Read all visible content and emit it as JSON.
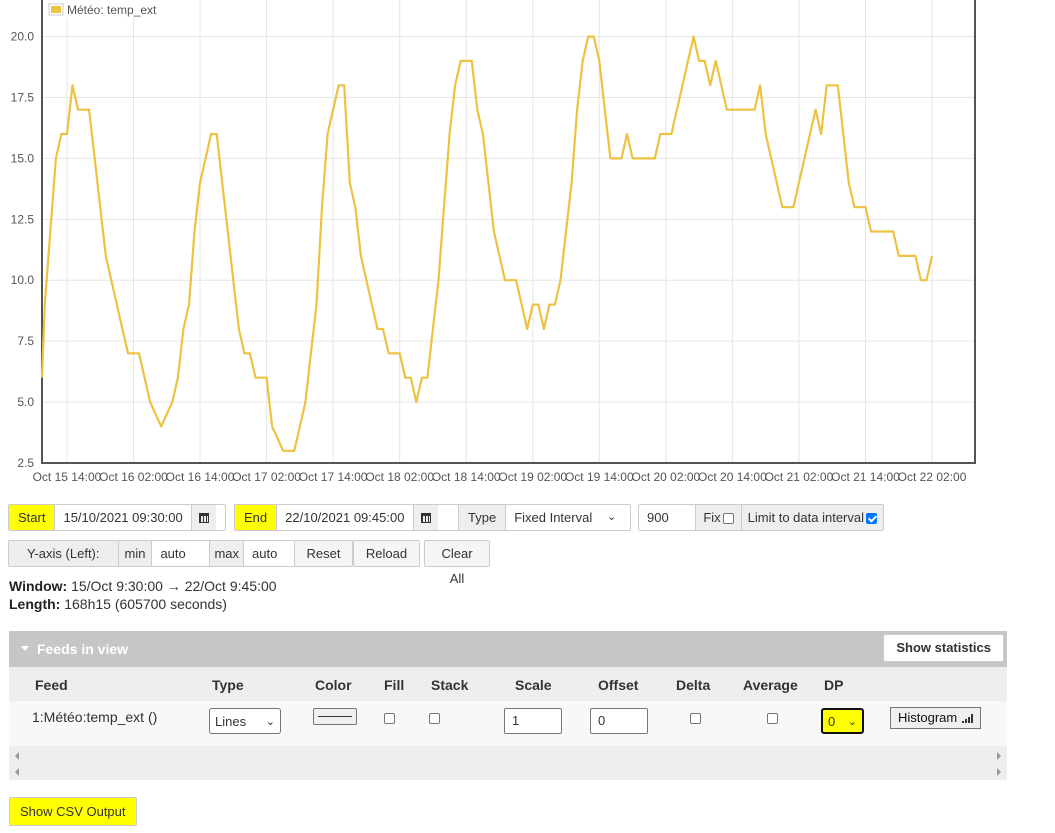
{
  "chart_data": {
    "type": "line",
    "series": [
      {
        "name": "Météo: temp_ext",
        "color": "#edc240",
        "points": [
          [
            "2021-10-15 09:30",
            6
          ],
          [
            "2021-10-15 10:00",
            9
          ],
          [
            "2021-10-15 11:00",
            12
          ],
          [
            "2021-10-15 12:00",
            15
          ],
          [
            "2021-10-15 13:00",
            16
          ],
          [
            "2021-10-15 14:00",
            16
          ],
          [
            "2021-10-15 15:00",
            18
          ],
          [
            "2021-10-15 16:00",
            17
          ],
          [
            "2021-10-15 18:00",
            17
          ],
          [
            "2021-10-15 19:00",
            15
          ],
          [
            "2021-10-15 20:00",
            13
          ],
          [
            "2021-10-15 21:00",
            11
          ],
          [
            "2021-10-15 22:00",
            10
          ],
          [
            "2021-10-15 23:00",
            9
          ],
          [
            "2021-10-16 00:00",
            8
          ],
          [
            "2021-10-16 01:00",
            7
          ],
          [
            "2021-10-16 03:00",
            7
          ],
          [
            "2021-10-16 04:00",
            6
          ],
          [
            "2021-10-16 05:00",
            5
          ],
          [
            "2021-10-16 07:00",
            4
          ],
          [
            "2021-10-16 09:00",
            5
          ],
          [
            "2021-10-16 10:00",
            6
          ],
          [
            "2021-10-16 11:00",
            8
          ],
          [
            "2021-10-16 12:00",
            9
          ],
          [
            "2021-10-16 13:00",
            12
          ],
          [
            "2021-10-16 14:00",
            14
          ],
          [
            "2021-10-16 15:00",
            15
          ],
          [
            "2021-10-16 16:00",
            16
          ],
          [
            "2021-10-16 17:00",
            16
          ],
          [
            "2021-10-16 18:00",
            14
          ],
          [
            "2021-10-16 19:00",
            12
          ],
          [
            "2021-10-16 20:00",
            10
          ],
          [
            "2021-10-16 21:00",
            8
          ],
          [
            "2021-10-16 22:00",
            7
          ],
          [
            "2021-10-16 23:00",
            7
          ],
          [
            "2021-10-17 00:00",
            6
          ],
          [
            "2021-10-17 02:00",
            6
          ],
          [
            "2021-10-17 03:00",
            4
          ],
          [
            "2021-10-17 05:00",
            3
          ],
          [
            "2021-10-17 07:00",
            3
          ],
          [
            "2021-10-17 08:00",
            4
          ],
          [
            "2021-10-17 09:00",
            5
          ],
          [
            "2021-10-17 10:00",
            7
          ],
          [
            "2021-10-17 11:00",
            9
          ],
          [
            "2021-10-17 12:00",
            13
          ],
          [
            "2021-10-17 13:00",
            16
          ],
          [
            "2021-10-17 14:00",
            17
          ],
          [
            "2021-10-17 15:00",
            18
          ],
          [
            "2021-10-17 16:00",
            18
          ],
          [
            "2021-10-17 17:00",
            14
          ],
          [
            "2021-10-17 18:00",
            13
          ],
          [
            "2021-10-17 19:00",
            11
          ],
          [
            "2021-10-17 20:00",
            10
          ],
          [
            "2021-10-17 21:00",
            9
          ],
          [
            "2021-10-17 22:00",
            8
          ],
          [
            "2021-10-17 23:00",
            8
          ],
          [
            "2021-10-18 00:00",
            7
          ],
          [
            "2021-10-18 02:00",
            7
          ],
          [
            "2021-10-18 03:00",
            6
          ],
          [
            "2021-10-18 04:00",
            6
          ],
          [
            "2021-10-18 05:00",
            5
          ],
          [
            "2021-10-18 06:00",
            6
          ],
          [
            "2021-10-18 07:00",
            6
          ],
          [
            "2021-10-18 08:00",
            8
          ],
          [
            "2021-10-18 09:00",
            10
          ],
          [
            "2021-10-18 10:00",
            13
          ],
          [
            "2021-10-18 11:00",
            16
          ],
          [
            "2021-10-18 12:00",
            18
          ],
          [
            "2021-10-18 13:00",
            19
          ],
          [
            "2021-10-18 15:00",
            19
          ],
          [
            "2021-10-18 16:00",
            17
          ],
          [
            "2021-10-18 17:00",
            16
          ],
          [
            "2021-10-18 18:00",
            14
          ],
          [
            "2021-10-18 19:00",
            12
          ],
          [
            "2021-10-18 20:00",
            11
          ],
          [
            "2021-10-18 21:00",
            10
          ],
          [
            "2021-10-18 23:00",
            10
          ],
          [
            "2021-10-19 00:00",
            9
          ],
          [
            "2021-10-19 01:00",
            8
          ],
          [
            "2021-10-19 02:00",
            9
          ],
          [
            "2021-10-19 03:00",
            9
          ],
          [
            "2021-10-19 04:00",
            8
          ],
          [
            "2021-10-19 05:00",
            9
          ],
          [
            "2021-10-19 06:00",
            9
          ],
          [
            "2021-10-19 07:00",
            10
          ],
          [
            "2021-10-19 08:00",
            12
          ],
          [
            "2021-10-19 09:00",
            14
          ],
          [
            "2021-10-19 10:00",
            17
          ],
          [
            "2021-10-19 11:00",
            19
          ],
          [
            "2021-10-19 12:00",
            20
          ],
          [
            "2021-10-19 13:00",
            20
          ],
          [
            "2021-10-19 14:00",
            19
          ],
          [
            "2021-10-19 15:00",
            17
          ],
          [
            "2021-10-19 16:00",
            15
          ],
          [
            "2021-10-19 18:00",
            15
          ],
          [
            "2021-10-19 19:00",
            16
          ],
          [
            "2021-10-19 20:00",
            15
          ],
          [
            "2021-10-20 00:00",
            15
          ],
          [
            "2021-10-20 01:00",
            16
          ],
          [
            "2021-10-20 03:00",
            16
          ],
          [
            "2021-10-20 04:00",
            17
          ],
          [
            "2021-10-20 05:00",
            18
          ],
          [
            "2021-10-20 06:00",
            19
          ],
          [
            "2021-10-20 07:00",
            20
          ],
          [
            "2021-10-20 08:00",
            19
          ],
          [
            "2021-10-20 09:00",
            19
          ],
          [
            "2021-10-20 10:00",
            18
          ],
          [
            "2021-10-20 11:00",
            19
          ],
          [
            "2021-10-20 12:00",
            18
          ],
          [
            "2021-10-20 13:00",
            17
          ],
          [
            "2021-10-20 18:00",
            17
          ],
          [
            "2021-10-20 19:00",
            18
          ],
          [
            "2021-10-20 20:00",
            16
          ],
          [
            "2021-10-20 21:00",
            15
          ],
          [
            "2021-10-20 22:00",
            14
          ],
          [
            "2021-10-20 23:00",
            13
          ],
          [
            "2021-10-21 01:00",
            13
          ],
          [
            "2021-10-21 02:00",
            14
          ],
          [
            "2021-10-21 03:00",
            15
          ],
          [
            "2021-10-21 04:00",
            16
          ],
          [
            "2021-10-21 05:00",
            17
          ],
          [
            "2021-10-21 06:00",
            16
          ],
          [
            "2021-10-21 07:00",
            18
          ],
          [
            "2021-10-21 09:00",
            18
          ],
          [
            "2021-10-21 10:00",
            16
          ],
          [
            "2021-10-21 11:00",
            14
          ],
          [
            "2021-10-21 12:00",
            13
          ],
          [
            "2021-10-21 14:00",
            13
          ],
          [
            "2021-10-21 15:00",
            12
          ],
          [
            "2021-10-21 19:00",
            12
          ],
          [
            "2021-10-21 20:00",
            11
          ],
          [
            "2021-10-21 23:00",
            11
          ],
          [
            "2021-10-22 00:00",
            10
          ],
          [
            "2021-10-22 01:00",
            10
          ],
          [
            "2021-10-22 02:00",
            11
          ]
        ]
      }
    ],
    "x_range": [
      "2021-10-15 09:30",
      "2021-10-22 09:45"
    ],
    "ylim": [
      2.5,
      21.5
    ],
    "y_ticks": [
      "20.0",
      "17.5",
      "15.0",
      "12.5",
      "10.0",
      "7.5",
      "5.0",
      "2.5"
    ],
    "x_ticks": [
      "Oct 15 14:00",
      "Oct 16 02:00",
      "Oct 16 14:00",
      "Oct 17 02:00",
      "Oct 17 14:00",
      "Oct 18 02:00",
      "Oct 18 14:00",
      "Oct 19 02:00",
      "Oct 19 14:00",
      "Oct 20 02:00",
      "Oct 20 14:00",
      "Oct 21 02:00",
      "Oct 21 14:00",
      "Oct 22 02:00"
    ],
    "grid": true,
    "legend_position": "top-left"
  },
  "controls": {
    "start_label": "Start",
    "start_value": "15/10/2021 09:30:00",
    "end_label": "End",
    "end_value": "22/10/2021 09:45:00",
    "type_label": "Type",
    "type_value": "Fixed Interval",
    "interval_value": "900",
    "fix_label": "Fix",
    "fix_checked": false,
    "limit_label": "Limit to data interval",
    "limit_checked": true,
    "yaxis_label": "Y-axis (Left):",
    "min_label": "min",
    "min_value": "auto",
    "max_label": "max",
    "max_value": "auto",
    "reset_label": "Reset",
    "reload_label": "Reload",
    "clear_label": "Clear All"
  },
  "info": {
    "window_label": "Window:",
    "window_value": "15/Oct 9:30:00 → 22/Oct 9:45:00",
    "length_label": "Length:",
    "length_value": "168h15 (605700 seconds)"
  },
  "feeds": {
    "title": "Feeds in view",
    "stats_button": "Show statistics",
    "columns": [
      "Feed",
      "Type",
      "Color",
      "Fill",
      "Stack",
      "Scale",
      "Offset",
      "Delta",
      "Average",
      "DP"
    ],
    "row": {
      "feed": "1:Météo:temp_ext ()",
      "type": "Lines",
      "scale": "1",
      "offset": "0",
      "dp": "0",
      "histogram_label": "Histogram"
    }
  },
  "csv_button": "Show CSV Output",
  "colors": {
    "highlight": "#ffff00",
    "line": "#edc240",
    "panel_header": "#c6c6c6"
  }
}
